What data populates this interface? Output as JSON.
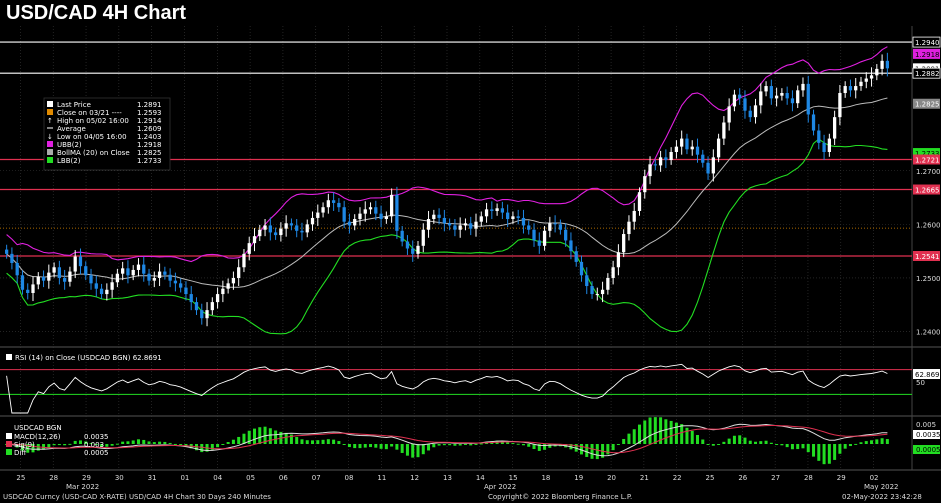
{
  "title": "USD/CAD 4H Chart",
  "colors": {
    "up": "#ffffff",
    "down": "#1e88e5",
    "ubb": "#e020e0",
    "lbb": "#22dd22",
    "avg": "#bbbbbb",
    "level_red": "#e03050",
    "level_white": "#ffffff",
    "close_line": "#e08a00"
  },
  "legend": [
    {
      "label": "Last Price",
      "value": "1.2891",
      "swatch": "#ffffff"
    },
    {
      "label": "Close on 03/21 ----",
      "value": "1.2593",
      "swatch": "#e08a00"
    },
    {
      "label": "High on 05/02 16:00",
      "value": "1.2914",
      "swatch": "arrow-up"
    },
    {
      "label": "Average",
      "value": "1.2609",
      "swatch": "dash"
    },
    {
      "label": "Low on 04/05 16:00",
      "value": "1.2403",
      "swatch": "arrow-down"
    },
    {
      "label": "UBB(2)",
      "value": "1.2918",
      "swatch": "#e020e0"
    },
    {
      "label": "BollMA (20)  on Close",
      "value": "1.2825",
      "swatch": "#aaaaaa"
    },
    {
      "label": "LBB(2)",
      "value": "1.2733",
      "swatch": "#22dd22"
    }
  ],
  "price_axis": {
    "ticks": [
      "1.2700",
      "1.2600",
      "1.2500",
      "1.2400"
    ],
    "labels": [
      {
        "text": "1.2940",
        "bg": "#000000",
        "fg": "#ffffff",
        "border": "#ffffff"
      },
      {
        "text": "1.2918",
        "bg": "#e020e0",
        "fg": "#000000"
      },
      {
        "text": "1.2891",
        "bg": "#ffffff",
        "fg": "#000000"
      },
      {
        "text": "1.2882",
        "bg": "#000000",
        "fg": "#ffffff",
        "border": "#ffffff"
      },
      {
        "text": "1.2825",
        "bg": "#888888",
        "fg": "#ffffff"
      },
      {
        "text": "1.2733",
        "bg": "#22dd22",
        "fg": "#000000"
      },
      {
        "text": "1.2721",
        "bg": "#e03050",
        "fg": "#ffffff"
      },
      {
        "text": "1.2665",
        "bg": "#e03050",
        "fg": "#ffffff"
      },
      {
        "text": "1.2541",
        "bg": "#e03050",
        "fg": "#ffffff"
      }
    ]
  },
  "rsi_panel": {
    "label": "RSI (14)  on Close (USDCAD BGN) 62.8691",
    "value_label": "62.8691",
    "ticks": [
      "50"
    ]
  },
  "macd_panel": {
    "header": "USDCAD BGN",
    "rows": [
      {
        "label": "MACD(12,26)",
        "value": "0.0035",
        "swatch": "#ffffff"
      },
      {
        "label": "Sig(9)",
        "value": "0.003",
        "swatch": "#e03050"
      },
      {
        "label": "Diff",
        "value": "0.0005",
        "swatch": "#22dd22"
      }
    ],
    "ticks": [
      "0.005",
      "0.0035",
      "0.0005"
    ]
  },
  "x_axis": {
    "days": [
      "25",
      "28",
      "29",
      "30",
      "31",
      "01",
      "04",
      "05",
      "06",
      "07",
      "08",
      "11",
      "12",
      "13",
      "14",
      "15",
      "18",
      "19",
      "20",
      "21",
      "22",
      "25",
      "26",
      "27",
      "28",
      "29",
      "02"
    ],
    "months": [
      "Mar 2022",
      "Apr 2022",
      "May 2022"
    ]
  },
  "footer": {
    "left": "USDCAD Curncy (USD-CAD X-RATE) USD/CAD 4H Chart 30 Days 240 Minutes",
    "center": "Copyright© 2022 Bloomberg Finance L.P.",
    "right": "02-May-2022 23:42:28"
  },
  "chart_data": {
    "type": "candlestick",
    "title": "USD/CAD 4H Chart",
    "ylim": [
      1.2375,
      1.297
    ],
    "levels": [
      {
        "value": 1.294,
        "color": "white"
      },
      {
        "value": 1.2882,
        "color": "white"
      },
      {
        "value": 1.2721,
        "color": "red"
      },
      {
        "value": 1.2665,
        "color": "red"
      },
      {
        "value": 1.2541,
        "color": "red"
      },
      {
        "value": 1.2593,
        "color": "orange-dotted"
      }
    ],
    "closes": [
      1.2545,
      1.2528,
      1.2505,
      1.2478,
      1.2472,
      1.2488,
      1.2502,
      1.2495,
      1.251,
      1.252,
      1.25,
      1.2493,
      1.2512,
      1.254,
      1.2522,
      1.2505,
      1.249,
      1.248,
      1.247,
      1.2478,
      1.2492,
      1.2508,
      1.2518,
      1.2505,
      1.2515,
      1.2525,
      1.2508,
      1.2495,
      1.25,
      1.2512,
      1.2506,
      1.2495,
      1.249,
      1.2482,
      1.247,
      1.2455,
      1.244,
      1.2425,
      1.244,
      1.2455,
      1.247,
      1.248,
      1.249,
      1.25,
      1.252,
      1.2545,
      1.2565,
      1.2578,
      1.259,
      1.2598,
      1.2585,
      1.258,
      1.2592,
      1.2602,
      1.2598,
      1.2588,
      1.2585,
      1.26,
      1.2612,
      1.2622,
      1.2632,
      1.2645,
      1.264,
      1.2632,
      1.2605,
      1.2598,
      1.261,
      1.262,
      1.2628,
      1.2632,
      1.262,
      1.261,
      1.2615,
      1.2655,
      1.2588,
      1.2568,
      1.2555,
      1.2545,
      1.256,
      1.259,
      1.261,
      1.2618,
      1.2612,
      1.2602,
      1.2598,
      1.259,
      1.2598,
      1.2602,
      1.2592,
      1.2605,
      1.2615,
      1.2628,
      1.2625,
      1.263,
      1.2622,
      1.261,
      1.2615,
      1.2612,
      1.2598,
      1.259,
      1.257,
      1.256,
      1.2588,
      1.2602,
      1.26,
      1.259,
      1.257,
      1.255,
      1.253,
      1.2505,
      1.2485,
      1.247,
      1.247,
      1.2478,
      1.25,
      1.252,
      1.2548,
      1.2582,
      1.2605,
      1.2625,
      1.266,
      1.269,
      1.2712,
      1.271,
      1.2725,
      1.272,
      1.2735,
      1.2745,
      1.276,
      1.274,
      1.2745,
      1.273,
      1.2715,
      1.2695,
      1.2725,
      1.276,
      1.279,
      1.282,
      1.2842,
      1.2835,
      1.2812,
      1.28,
      1.2822,
      1.2848,
      1.2858,
      1.2835,
      1.284,
      1.2845,
      1.2835,
      1.2826,
      1.285,
      1.2862,
      1.2805,
      1.2775,
      1.2752,
      1.2735,
      1.276,
      1.28,
      1.2845,
      1.2858,
      1.285,
      1.2858,
      1.2866,
      1.2872,
      1.2878,
      1.289,
      1.2905,
      1.2891
    ]
  }
}
